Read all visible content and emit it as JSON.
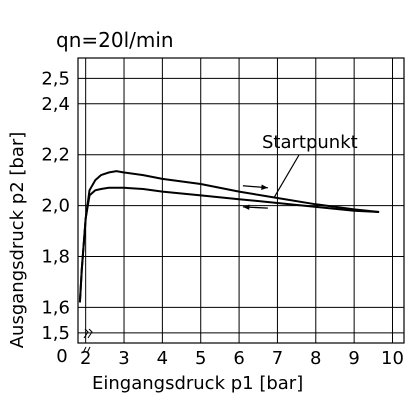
{
  "chart_data": {
    "type": "line",
    "title": "qn=20l/min",
    "xlabel": "Eingangsdruck p1 [bar]",
    "ylabel": "Ausgangsdruck p2 [bar]",
    "xlim": [
      1.8,
      10.3
    ],
    "ylim": [
      1.46,
      2.58
    ],
    "x_ticks": [
      "2",
      "3",
      "4",
      "5",
      "6",
      "7",
      "8",
      "9",
      "10"
    ],
    "x_tick_values": [
      2,
      3,
      4,
      5,
      6,
      7,
      8,
      9,
      10
    ],
    "y_ticks": [
      "1,5",
      "1,6",
      "1,8",
      "2,0",
      "2,2",
      "2,4",
      "2,5"
    ],
    "y_tick_values": [
      1.5,
      1.6,
      1.8,
      2.0,
      2.2,
      2.4,
      2.5
    ],
    "origin_label": "0",
    "axis_break": true,
    "grid": true,
    "annotation": "Startpunkt",
    "series": [
      {
        "direction": "rising",
        "x": [
          1.85,
          1.9,
          2.0,
          2.1,
          2.25,
          2.4,
          2.6,
          2.8,
          3.0,
          3.5,
          4.0,
          5.0,
          6.0,
          7.0,
          8.0,
          9.0,
          9.65
        ],
        "y": [
          1.62,
          1.75,
          1.95,
          2.06,
          2.1,
          2.12,
          2.13,
          2.135,
          2.13,
          2.12,
          2.105,
          2.085,
          2.055,
          2.03,
          2.005,
          1.985,
          1.975
        ]
      },
      {
        "direction": "falling",
        "x": [
          9.65,
          9.0,
          8.0,
          7.0,
          6.0,
          5.0,
          4.0,
          3.5,
          3.0,
          2.6,
          2.4,
          2.25,
          2.1,
          2.0,
          1.9,
          1.85
        ],
        "y": [
          1.975,
          1.98,
          1.995,
          2.01,
          2.025,
          2.04,
          2.055,
          2.065,
          2.07,
          2.07,
          2.065,
          2.06,
          2.04,
          1.95,
          1.75,
          1.62
        ]
      }
    ]
  }
}
